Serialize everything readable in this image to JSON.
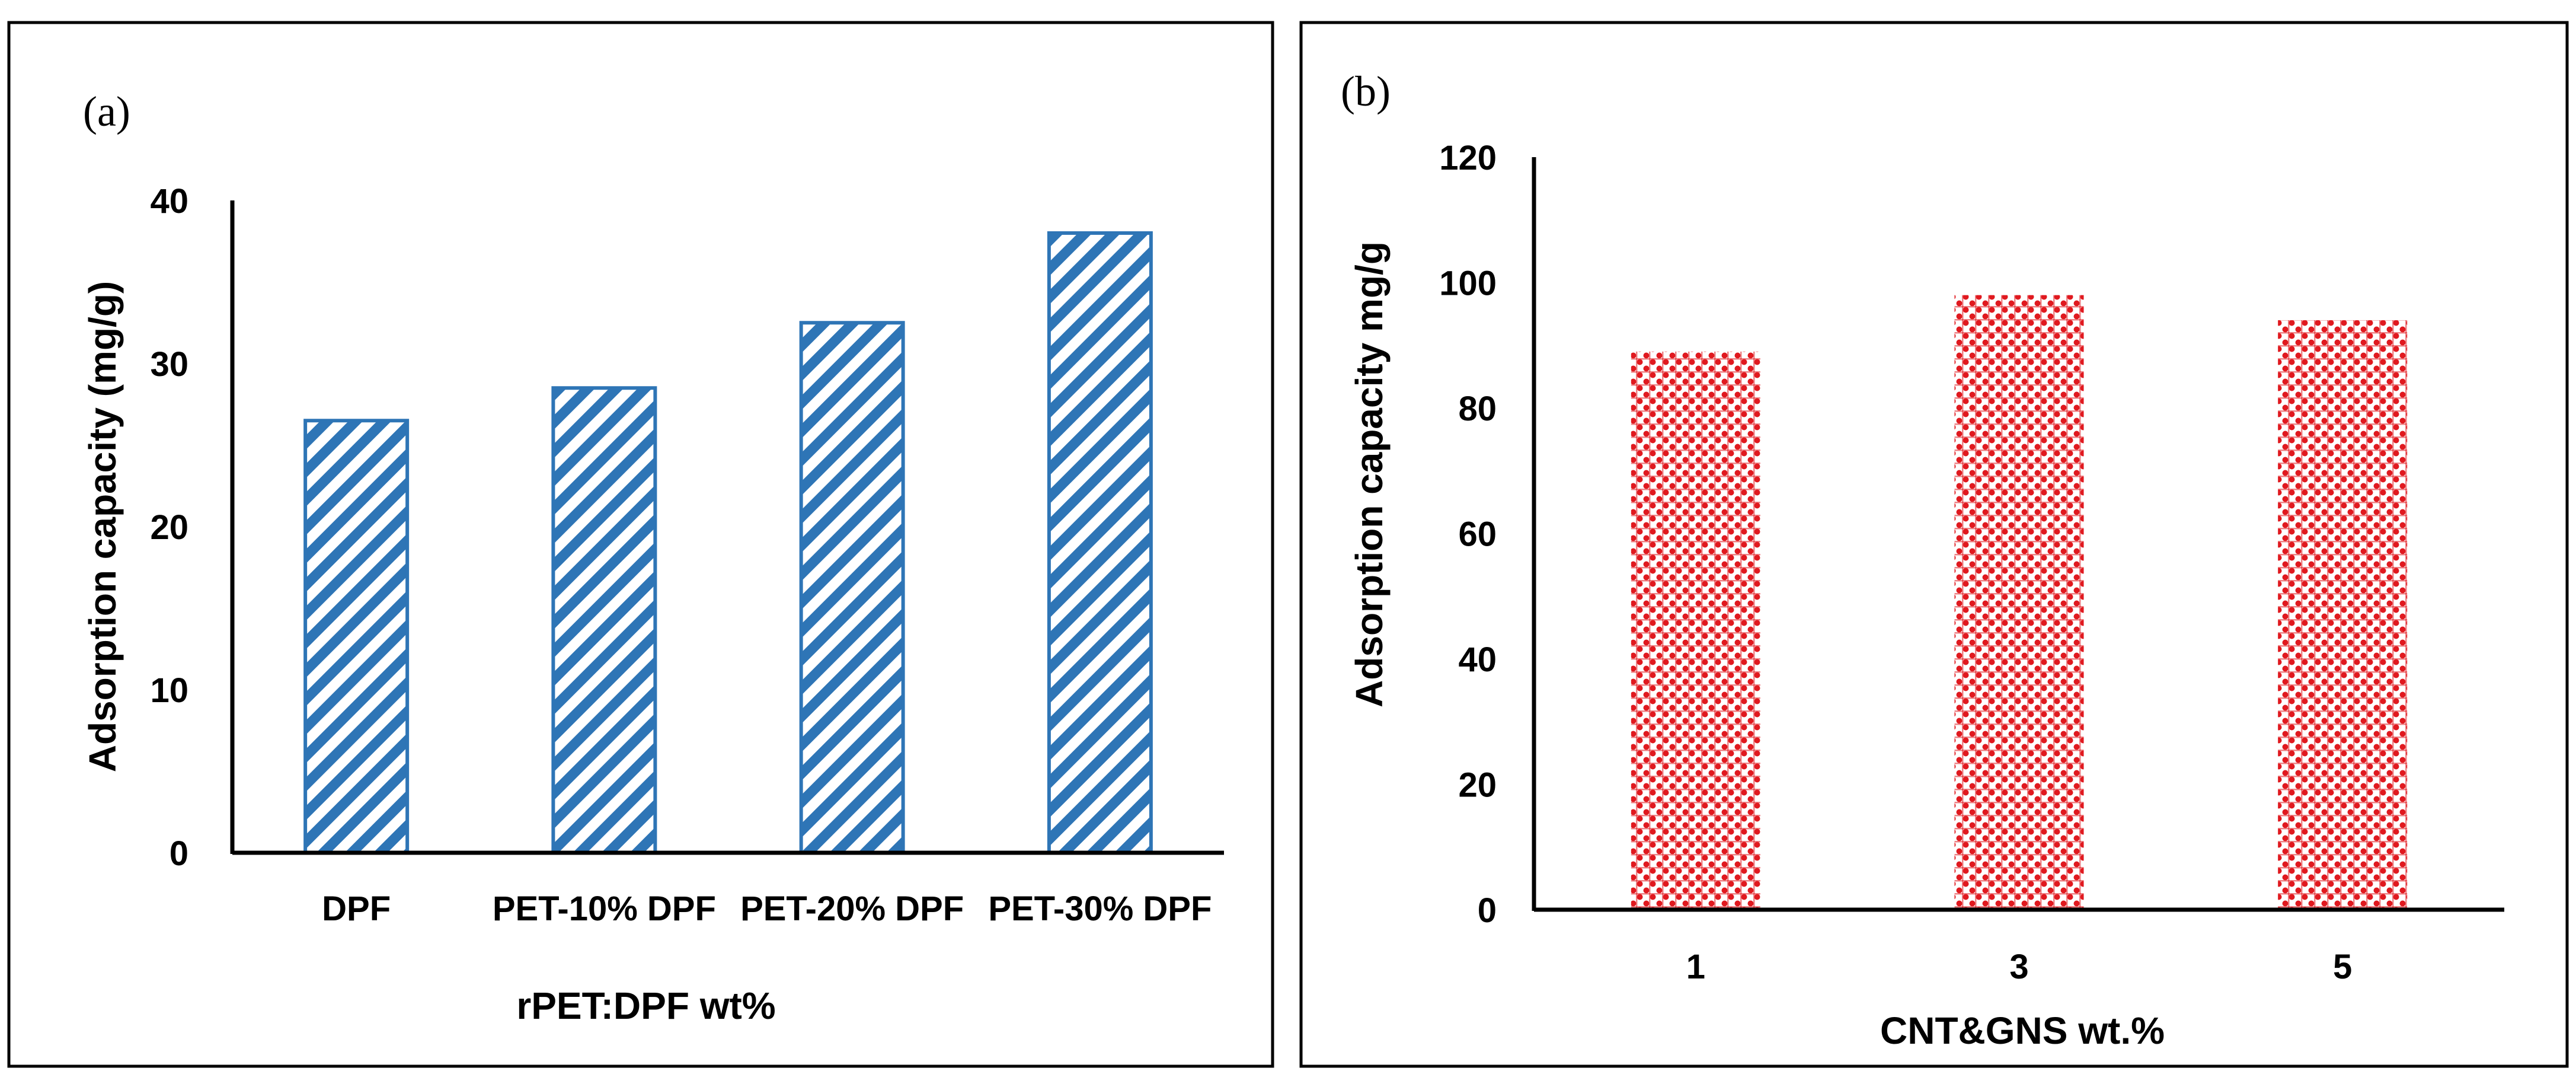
{
  "colors": {
    "panel_a_bar": "#2e75b6",
    "panel_b_bar": "#e0191f",
    "axis": "#000000",
    "frame": "#000000"
  },
  "chart_data": [
    {
      "type": "bar",
      "panel_label": "(a)",
      "title": "",
      "xlabel": "rPET:DPF wt%",
      "ylabel": "Adsorption capacity (mg/g)",
      "categories": [
        "DPF",
        "PET-10% DPF",
        "PET-20% DPF",
        "PET-30% DPF"
      ],
      "values": [
        26.5,
        28.5,
        32.5,
        38
      ],
      "ylim": [
        0,
        40
      ],
      "yticks": [
        "0",
        "10",
        "20",
        "30",
        "40"
      ],
      "grid": false,
      "pattern": "diagonal-stripes"
    },
    {
      "type": "bar",
      "panel_label": "(b)",
      "title": "",
      "xlabel": "CNT&GNS wt.%",
      "ylabel": "Adsorption capacity mg/g",
      "categories": [
        "1",
        "3",
        "5"
      ],
      "values": [
        89,
        98,
        94
      ],
      "ylim": [
        0,
        120
      ],
      "yticks": [
        "0",
        "20",
        "40",
        "60",
        "80",
        "100",
        "120"
      ],
      "grid": false,
      "pattern": "dotted-check"
    }
  ]
}
